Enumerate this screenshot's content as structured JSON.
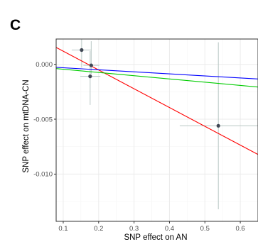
{
  "panel_label": "C",
  "chart_data": {
    "type": "scatter",
    "xlabel": "SNP effect on AN",
    "ylabel": "SNP effect on mtDNA-CN",
    "xlim": [
      0.08,
      0.65
    ],
    "ylim": [
      -0.0143,
      0.0023
    ],
    "x_ticks": [
      0.1,
      0.2,
      0.3,
      0.4,
      0.5,
      0.6
    ],
    "x_tick_labels": [
      "0.1",
      "0.2",
      "0.3",
      "0.4",
      "0.5",
      "0.6"
    ],
    "y_ticks": [
      0.0,
      -0.005,
      -0.01
    ],
    "y_tick_labels": [
      "0.000",
      "-0.005",
      "-0.010"
    ],
    "grid": true,
    "points": [
      {
        "x": 0.152,
        "y": 0.0013,
        "x_low": 0.124,
        "x_high": 0.18,
        "y_low": -0.0003,
        "y_high": 0.0033
      },
      {
        "x": 0.179,
        "y": -0.0001,
        "x_low": 0.157,
        "x_high": 0.202,
        "y_low": -0.0009,
        "y_high": 0.0021
      },
      {
        "x": 0.176,
        "y": -0.0011,
        "x_low": 0.148,
        "x_high": 0.205,
        "y_low": -0.0037,
        "y_high": 0.0012
      },
      {
        "x": 0.538,
        "y": -0.0056,
        "x_low": 0.429,
        "x_high": 0.65,
        "y_low": -0.0132,
        "y_high": 0.002
      }
    ],
    "lines": [
      {
        "color": "#ff0000",
        "intercept": 0.0029,
        "slope": -0.0171
      },
      {
        "color": "#00cc00",
        "intercept": -0.00016,
        "slope": -0.00294
      },
      {
        "color": "#0000ff",
        "intercept": -0.00013,
        "slope": -0.00186
      }
    ],
    "colors": {
      "point": "#404754",
      "errorbar": "#b8c7c4",
      "grid_major": "#ebebeb",
      "grid_minor": "#f5f5f5",
      "panel_border": "#333333"
    }
  }
}
